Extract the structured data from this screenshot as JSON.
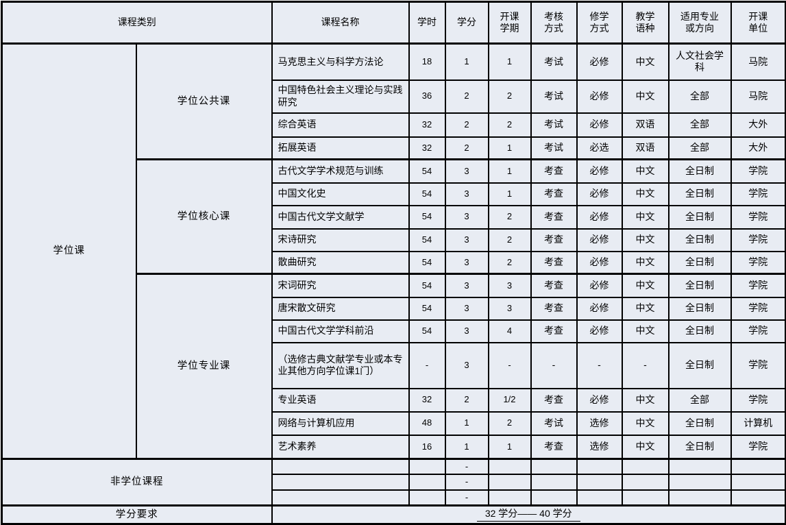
{
  "header": {
    "course_category": "课程类别",
    "course_name": "课程名称",
    "columns": [
      "学时",
      "学分",
      "开课\n学期",
      "考核\n方式",
      "修学\n方式",
      "教学\n语种",
      "适用专业\n或方向",
      "开课\n单位"
    ]
  },
  "degree_section": {
    "category": "学位课",
    "subsections": [
      {
        "name": "学位公共课",
        "courses": [
          {
            "name": "马克思主义与科学方法论",
            "hours": "18",
            "credits": "1",
            "semester": "1",
            "assessment": "考试",
            "mode": "必修",
            "language": "中文",
            "applicable": "人文社会学科",
            "unit": "马院"
          },
          {
            "name": "中国特色社会主义理论与实践研究",
            "hours": "36",
            "credits": "2",
            "semester": "2",
            "assessment": "考试",
            "mode": "必修",
            "language": "中文",
            "applicable": "全部",
            "unit": "马院"
          },
          {
            "name": "综合英语",
            "hours": "32",
            "credits": "2",
            "semester": "2",
            "assessment": "考试",
            "mode": "必修",
            "language": "双语",
            "applicable": "全部",
            "unit": "大外"
          },
          {
            "name": "拓展英语",
            "hours": "32",
            "credits": "2",
            "semester": "1",
            "assessment": "考试",
            "mode": "必选",
            "language": "双语",
            "applicable": "全部",
            "unit": "大外"
          }
        ]
      },
      {
        "name": "学位核心课",
        "courses": [
          {
            "name": "古代文学学术规范与训练",
            "hours": "54",
            "credits": "3",
            "semester": "1",
            "assessment": "考查",
            "mode": "必修",
            "language": "中文",
            "applicable": "全日制",
            "unit": "学院"
          },
          {
            "name": "中国文化史",
            "hours": "54",
            "credits": "3",
            "semester": "1",
            "assessment": "考查",
            "mode": "必修",
            "language": "中文",
            "applicable": "全日制",
            "unit": "学院"
          },
          {
            "name": "中国古代文学文献学",
            "hours": "54",
            "credits": "3",
            "semester": "2",
            "assessment": "考查",
            "mode": "必修",
            "language": "中文",
            "applicable": "全日制",
            "unit": "学院"
          },
          {
            "name": "宋诗研究",
            "hours": "54",
            "credits": "3",
            "semester": "2",
            "assessment": "考查",
            "mode": "必修",
            "language": "中文",
            "applicable": "全日制",
            "unit": "学院"
          },
          {
            "name": "散曲研究",
            "hours": "54",
            "credits": "3",
            "semester": "2",
            "assessment": "考查",
            "mode": "必修",
            "language": "中文",
            "applicable": "全日制",
            "unit": "学院"
          }
        ]
      },
      {
        "name": "学位专业课",
        "courses": [
          {
            "name": "宋词研究",
            "hours": "54",
            "credits": "3",
            "semester": "3",
            "assessment": "考查",
            "mode": "必修",
            "language": "中文",
            "applicable": "全日制",
            "unit": "学院"
          },
          {
            "name": "唐宋散文研究",
            "hours": "54",
            "credits": "3",
            "semester": "3",
            "assessment": "考查",
            "mode": "必修",
            "language": "中文",
            "applicable": "全日制",
            "unit": "学院"
          },
          {
            "name": "中国古代文学学科前沿",
            "hours": "54",
            "credits": "3",
            "semester": "4",
            "assessment": "考查",
            "mode": "必修",
            "language": "中文",
            "applicable": "全日制",
            "unit": "学院"
          },
          {
            "name": "（选修古典文献学专业或本专业其他方向学位课1门）",
            "hours": "-",
            "credits": "3",
            "semester": "-",
            "assessment": "-",
            "mode": "-",
            "language": "-",
            "applicable": "全日制",
            "unit": "学院"
          },
          {
            "name": "专业英语",
            "hours": "32",
            "credits": "2",
            "semester": "1/2",
            "assessment": "考查",
            "mode": "必修",
            "language": "中文",
            "applicable": "全部",
            "unit": "学院"
          },
          {
            "name": "网络与计算机应用",
            "hours": "48",
            "credits": "1",
            "semester": "2",
            "assessment": "考试",
            "mode": "选修",
            "language": "中文",
            "applicable": "全日制",
            "unit": "计算机"
          },
          {
            "name": "艺术素养",
            "hours": "16",
            "credits": "1",
            "semester": "1",
            "assessment": "考查",
            "mode": "选修",
            "language": "中文",
            "applicable": "全日制",
            "unit": "学院"
          }
        ]
      }
    ]
  },
  "non_degree_section": {
    "label": "非学位课程",
    "rows": [
      {
        "name": "",
        "hours": "",
        "credits": "-",
        "semester": "",
        "assessment": "",
        "mode": "",
        "language": "",
        "applicable": "",
        "unit": ""
      },
      {
        "name": "",
        "hours": "",
        "credits": "-",
        "semester": "",
        "assessment": "",
        "mode": "",
        "language": "",
        "applicable": "",
        "unit": ""
      },
      {
        "name": "",
        "hours": "",
        "credits": "-",
        "semester": "",
        "assessment": "",
        "mode": "",
        "language": "",
        "applicable": "",
        "unit": ""
      }
    ]
  },
  "credit_requirement": {
    "label": "学分要求",
    "value": "32 学分—— 40 学分"
  }
}
